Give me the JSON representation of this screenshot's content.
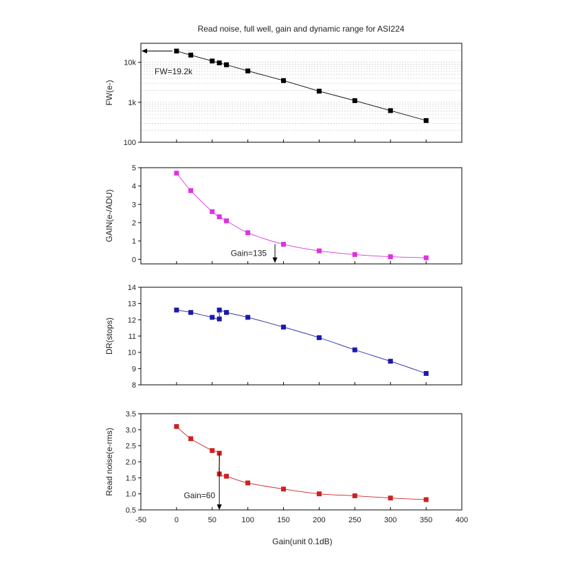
{
  "chart_data": [
    {
      "type": "scatter",
      "title": "Read noise, full well, gain and dynamic range for ASI224",
      "xlabel": "Gain(unit 0.1dB)",
      "ylabel": "FW(e-)",
      "yscale": "log",
      "ylim": [
        100,
        30000
      ],
      "yticks": [
        100,
        1000,
        10000
      ],
      "ytick_labels": [
        "100",
        "1k",
        "10k"
      ],
      "grid": "horizontal-minor",
      "color": "#000000",
      "series": [
        {
          "x": [
            0,
            20,
            50,
            60,
            70,
            100,
            150,
            200,
            250,
            300,
            350
          ],
          "y": [
            19200,
            15200,
            10800,
            9700,
            8700,
            6100,
            3500,
            1900,
            1100,
            620,
            350
          ]
        }
      ],
      "annotation": {
        "text": "FW=19.2k",
        "arrow_from_x": 0,
        "arrow_to_x": -50,
        "y": 19200
      }
    },
    {
      "type": "line",
      "ylabel": "GAIN(e-/ADU)",
      "ylim": [
        -0.25,
        5
      ],
      "yticks": [
        0,
        1,
        2,
        3,
        4,
        5
      ],
      "color": "#dd33dd",
      "series": [
        {
          "x": [
            0,
            20,
            50,
            60,
            70,
            100,
            150,
            200,
            250,
            300,
            350
          ],
          "y": [
            4.7,
            3.75,
            2.6,
            2.32,
            2.1,
            1.45,
            0.82,
            0.46,
            0.26,
            0.14,
            0.08
          ]
        }
      ],
      "annotation": {
        "text": "Gain=135",
        "x": 138,
        "y_from": 0.82,
        "y_to": -0.2
      }
    },
    {
      "type": "line",
      "ylabel": "DR(stops)",
      "ylim": [
        8,
        14
      ],
      "yticks": [
        8,
        9,
        10,
        11,
        12,
        13,
        14
      ],
      "color": "#1a1aaa",
      "series": [
        {
          "x": [
            0,
            20,
            50,
            60,
            60,
            70,
            100,
            150,
            200,
            250,
            300,
            350
          ],
          "y": [
            12.6,
            12.45,
            12.15,
            12.05,
            12.6,
            12.45,
            12.15,
            11.55,
            10.9,
            10.15,
            9.45,
            8.7
          ]
        }
      ]
    },
    {
      "type": "line",
      "ylabel": "Read noise(e-rms)",
      "xlim": [
        -50,
        400
      ],
      "xticks": [
        -50,
        0,
        50,
        100,
        150,
        200,
        250,
        300,
        350,
        400
      ],
      "ylim": [
        0.5,
        3.5
      ],
      "yticks": [
        0.5,
        1.0,
        1.5,
        2.0,
        2.5,
        3.0,
        3.5
      ],
      "ytick_labels": [
        "0.5",
        "1.0",
        "1.5",
        "2.0",
        "2.5",
        "3.0",
        "3.5"
      ],
      "color": "#cc2222",
      "series": [
        {
          "x": [
            0,
            20,
            50,
            60,
            60,
            70,
            100,
            150,
            200,
            250,
            300,
            350
          ],
          "y": [
            3.1,
            2.72,
            2.35,
            2.27,
            1.62,
            1.55,
            1.34,
            1.15,
            1.0,
            0.94,
            0.87,
            0.82
          ]
        }
      ],
      "annotation": {
        "text": "Gain=60",
        "x": 60,
        "y_from": 2.27,
        "y_to": 0.5
      }
    }
  ]
}
